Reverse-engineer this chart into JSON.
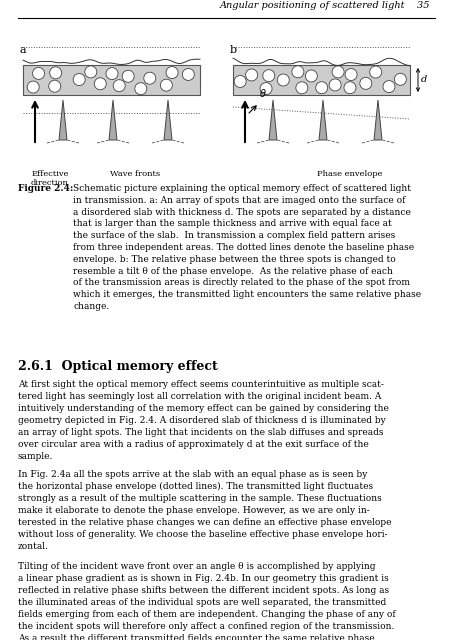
{
  "header_text": "Angular positioning of scattered light",
  "page_number": "35",
  "figure_label": "Figure 2.4:",
  "figure_caption": "Schematic picture explaining the optical memory effect of scattered light in transmission. a: An array of spots that are imaged onto the surface of a disordered slab with thickness d. The spots are separated by a distance that is larger than the sample thickness and arrive with equal face at the surface of the slab. In transmission a complex field pattern arises from three independent areas. The dotted lines denote the baseline phase envelope. b: The relative phase between the three spots is changed to resemble a tilt θ of the phase envelope. As the relative phase of each of the transmission areas is directly related to the phase of the spot from which it emerges, the transmitted light encounters the same relative phase change.",
  "section_heading": "2.6.1 Optical memory effect",
  "body_text_1": "At first sight the optical memory effect seems counterintuitive as multiple scattered light has seemingly lost all correlation with the original incident beam. A intuitively understanding of the memory effect can be gained by considering the geometry depicted in Fig. 2.4. A disordered slab of thickness d is illuminated by an array of light spots. The light that incidents on the slab diffuses and spreads over circular area with a radius of approximately d at the exit surface of the sample.",
  "body_text_2": "In Fig. 2.4a all the spots arrive at the slab with an equal phase as is seen by the horizontal phase envelope (dotted lines). The transmitted light fluctuates strongly as a result of the multiple scattering in the sample. These fluctuations make it elaborate to denote the phase envelope. However, as we are only interested in the relative phase changes we can define an effective phase envelope without loss of generality. We choose the baseline effective phase envelope horizontal.",
  "body_text_3": "Tilting of the incident wave front over an angle θ is accomplished by applying a linear phase gradient as is shown in Fig. 2.4b. In our geometry this gradient is reflected in relative phase shifts between the different incident spots. As long as the illuminated areas of the individual spots are well separated, the transmitted fields emerging from each of them are independent. Changing the phase of any of the incident spots will therefore only affect a confined region of the transmission. As a result the different transmitted fields encounter the same relative phase shifts resulting in a net tilt of the transmitted field over the same angle θ.",
  "bg_color": "#f5f5f0",
  "text_color": "#1a1a1a",
  "line_color": "#333333"
}
